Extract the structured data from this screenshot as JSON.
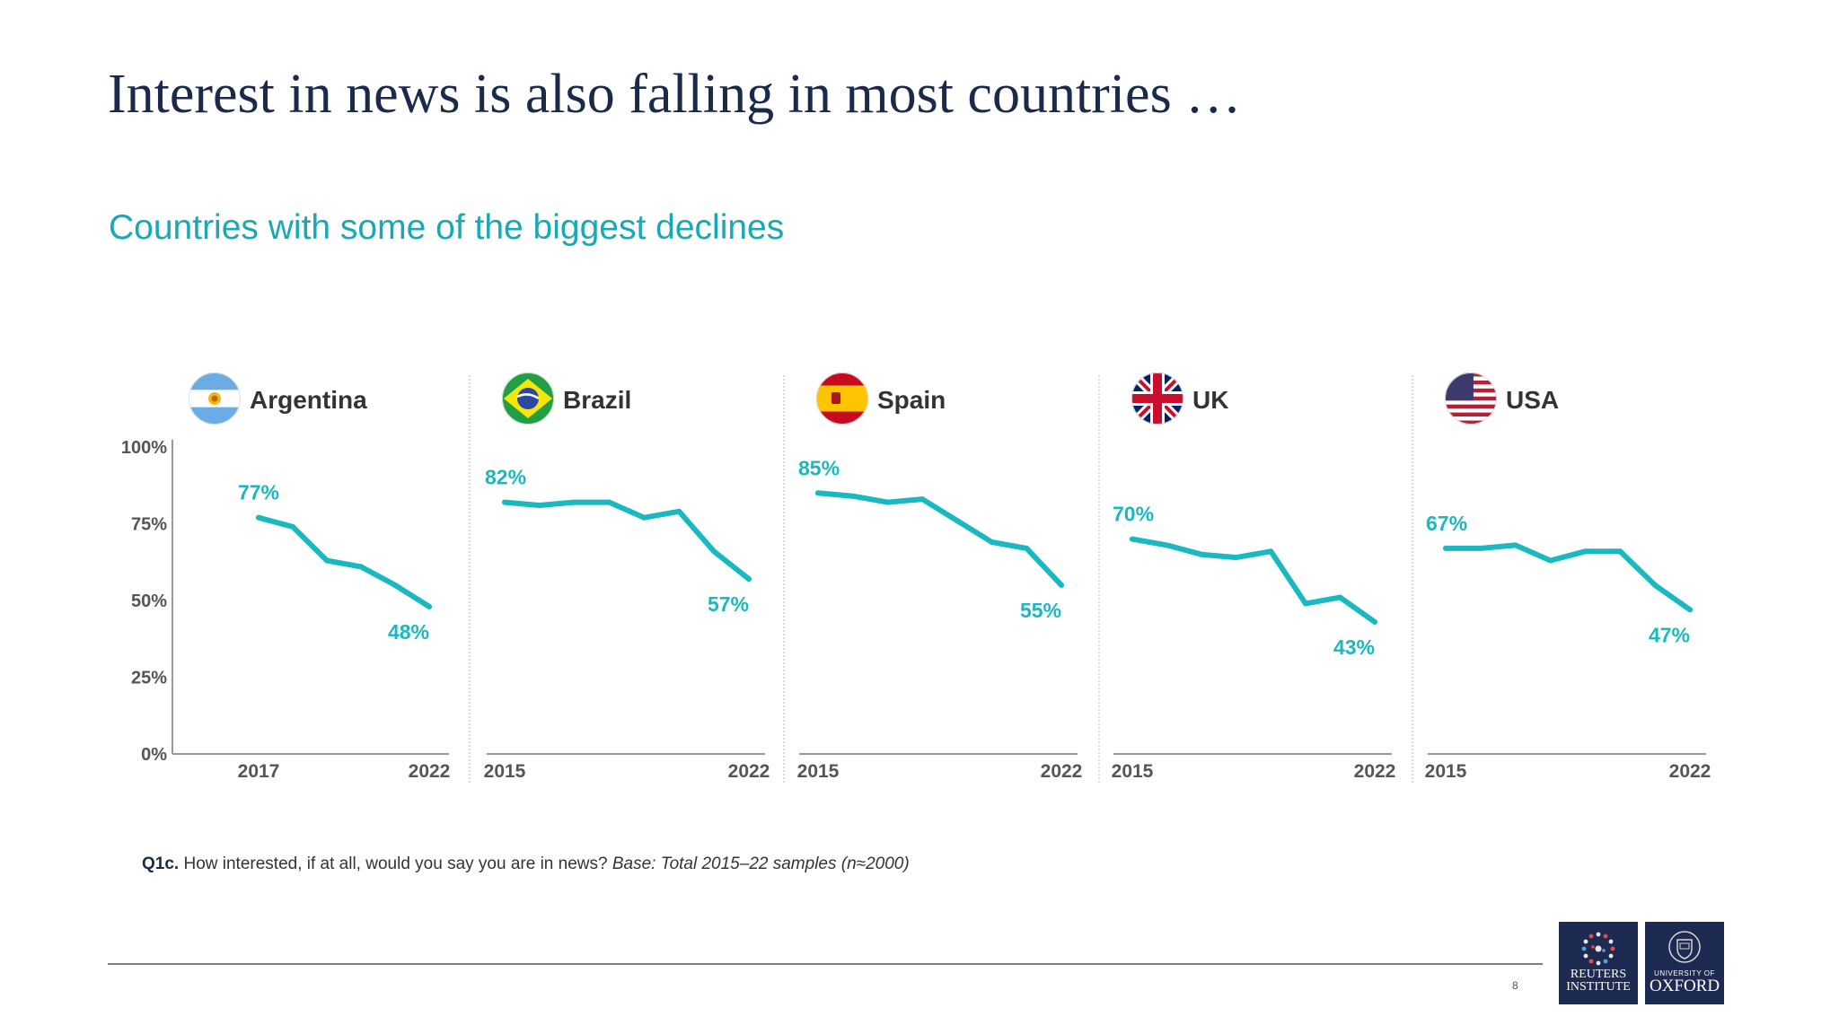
{
  "title": "Interest in news is also falling in most countries …",
  "subtitle": "Countries with some of the biggest declines",
  "footnote": {
    "question_id": "Q1c.",
    "question": " How interested, if at all, would you say you are in news? ",
    "base": "Base: Total 2015–22 samples (n≈2000)"
  },
  "page_number": "8",
  "logos": {
    "reuters": [
      "REUTERS",
      "INSTITUTE"
    ],
    "oxford": [
      "UNIVERSITY OF",
      "OXFORD"
    ]
  },
  "colors": {
    "line": "#1ab8c0",
    "axis": "#999999",
    "title": "#1b2a4a",
    "subtitle": "#17a9b5"
  },
  "chart_data": {
    "type": "line",
    "y_ticks": [
      "100%",
      "75%",
      "50%",
      "25%",
      "0%"
    ],
    "ylim": [
      0,
      100
    ],
    "panels": [
      {
        "name": "Argentina",
        "flag": "argentina-flag",
        "x_tick_labels": [
          "2017",
          "2022"
        ],
        "start_label": "77%",
        "end_label": "48%",
        "x": [
          2017,
          2018,
          2019,
          2020,
          2021,
          2022
        ],
        "values": [
          77,
          74,
          63,
          61,
          55,
          48
        ]
      },
      {
        "name": "Brazil",
        "flag": "brazil-flag",
        "x_tick_labels": [
          "2015",
          "2022"
        ],
        "start_label": "82%",
        "end_label": "57%",
        "x": [
          2015,
          2016,
          2017,
          2018,
          2019,
          2020,
          2021,
          2022
        ],
        "values": [
          82,
          81,
          82,
          82,
          77,
          79,
          66,
          57
        ]
      },
      {
        "name": "Spain",
        "flag": "spain-flag",
        "x_tick_labels": [
          "2015",
          "2022"
        ],
        "start_label": "85%",
        "end_label": "55%",
        "x": [
          2015,
          2016,
          2017,
          2018,
          2019,
          2020,
          2021,
          2022
        ],
        "values": [
          85,
          84,
          82,
          83,
          76,
          69,
          67,
          55
        ]
      },
      {
        "name": "UK",
        "flag": "uk-flag",
        "x_tick_labels": [
          "2015",
          "2022"
        ],
        "start_label": "70%",
        "end_label": "43%",
        "x": [
          2015,
          2016,
          2017,
          2018,
          2019,
          2020,
          2021,
          2022
        ],
        "values": [
          70,
          68,
          65,
          64,
          66,
          49,
          51,
          43
        ]
      },
      {
        "name": "USA",
        "flag": "usa-flag",
        "x_tick_labels": [
          "2015",
          "2022"
        ],
        "start_label": "67%",
        "end_label": "47%",
        "x": [
          2015,
          2016,
          2017,
          2018,
          2019,
          2020,
          2021,
          2022
        ],
        "values": [
          67,
          67,
          68,
          63,
          66,
          66,
          55,
          47
        ]
      }
    ]
  }
}
